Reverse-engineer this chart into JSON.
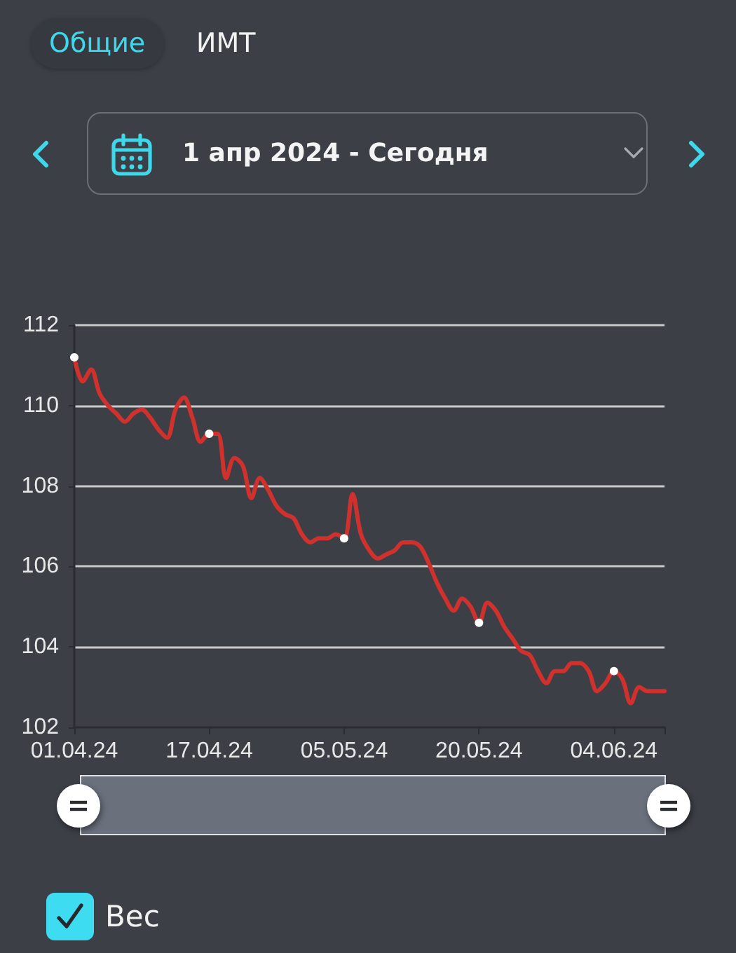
{
  "chart_data": {
    "type": "line",
    "annotations": [
      "Общие",
      "ИМТ",
      "1 апр 2024 - Сегодня"
    ],
    "categories": [
      "01.04.24",
      null,
      null,
      null,
      null,
      null,
      null,
      null,
      null,
      null,
      null,
      null,
      null,
      null,
      null,
      null,
      "17.04.24",
      null,
      null,
      null,
      null,
      null,
      null,
      null,
      null,
      null,
      null,
      null,
      null,
      null,
      null,
      null,
      "05.05.24",
      null,
      null,
      null,
      null,
      null,
      null,
      null,
      null,
      null,
      null,
      null,
      null,
      null,
      null,
      null,
      "20.05.24",
      null,
      null,
      null,
      null,
      null,
      null,
      null,
      null,
      null,
      null,
      null,
      null,
      null,
      null,
      null,
      "04.06.24",
      null,
      null,
      null,
      null,
      null,
      null
    ],
    "series": [
      {
        "name": "Вес",
        "color": "#d0312d",
        "values": [
          111.2,
          110.6,
          110.9,
          110.3,
          110.0,
          109.8,
          109.6,
          109.8,
          109.9,
          109.7,
          109.4,
          109.2,
          109.9,
          110.2,
          109.7,
          109.1,
          109.3,
          109.3,
          108.2,
          108.7,
          108.5,
          107.7,
          108.2,
          107.9,
          107.5,
          107.3,
          107.2,
          106.8,
          106.6,
          106.7,
          106.7,
          106.8,
          106.7,
          107.8,
          106.8,
          106.4,
          106.2,
          106.3,
          106.4,
          106.6,
          106.6,
          106.5,
          106.1,
          105.6,
          105.2,
          104.9,
          105.2,
          105.0,
          104.6,
          105.1,
          104.9,
          104.5,
          104.2,
          103.9,
          103.8,
          103.4,
          103.1,
          103.4,
          103.4,
          103.6,
          103.6,
          103.4,
          102.9,
          103.1,
          103.4,
          103.2,
          102.6,
          103.0,
          102.9,
          102.9,
          102.9
        ]
      },
      {
        "type": "scatter",
        "color": "#ffffff",
        "marker": "circle",
        "x": [
          "01.04.24",
          "17.04.24",
          "05.05.24",
          "20.05.24",
          "04.06.24"
        ],
        "values": [
          111.2,
          109.3,
          106.7,
          104.6,
          103.4
        ]
      }
    ],
    "ylim": [
      102,
      112
    ],
    "yticks": [
      102,
      104,
      106,
      108,
      110,
      112
    ],
    "grid": "y",
    "legend": "bottom left"
  }
}
